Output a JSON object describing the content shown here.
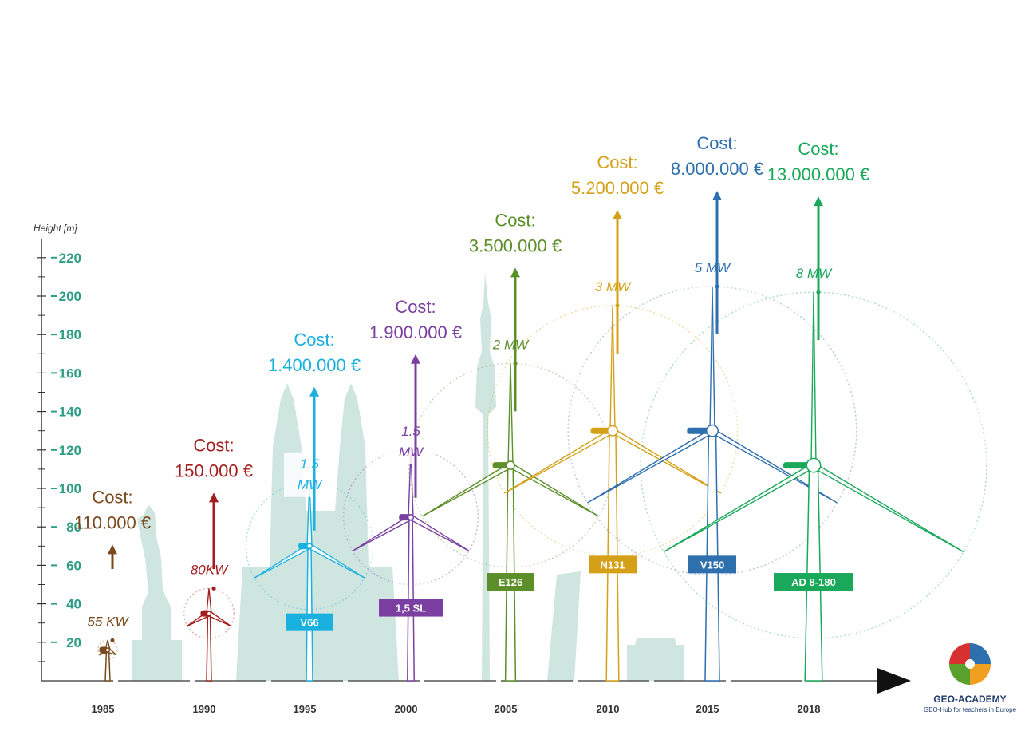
{
  "chart_data": {
    "type": "bar",
    "ylabel": "Height [m]",
    "ylim": [
      0,
      230
    ],
    "yticks": [
      20,
      40,
      60,
      80,
      100,
      120,
      140,
      160,
      180,
      200,
      220
    ],
    "categories": [
      "1985",
      "1990",
      "1995",
      "2000",
      "2005",
      "2010",
      "2015",
      "2018"
    ],
    "turbines": [
      {
        "year": "1985",
        "power": "55 KW",
        "model": "",
        "hub_height": 16,
        "tip_height": 21,
        "cost_label": "Cost:",
        "cost_value": "110.000 €",
        "color": "#7a4a1e"
      },
      {
        "year": "1990",
        "power": "80KW",
        "model": "",
        "hub_height": 35,
        "tip_height": 48,
        "cost_label": "Cost:",
        "cost_value": "150.000 €",
        "color": "#a31f1f"
      },
      {
        "year": "1995",
        "power": "1.5 MW",
        "model": "V66",
        "hub_height": 70,
        "tip_height": 103,
        "cost_label": "Cost:",
        "cost_value": "1.400.000 €",
        "color": "#1ab0e0"
      },
      {
        "year": "2000",
        "power": "1.5 MW",
        "model": "1,5 SL",
        "hub_height": 85,
        "tip_height": 120,
        "cost_label": "Cost:",
        "cost_value": "1.900.000 €",
        "color": "#7a3fa0"
      },
      {
        "year": "2005",
        "power": "2 MW",
        "model": "E126",
        "hub_height": 112,
        "tip_height": 165,
        "cost_label": "Cost:",
        "cost_value": "3.500.000 €",
        "color": "#5c8f2a"
      },
      {
        "year": "2010",
        "power": "3 MW",
        "model": "N131",
        "hub_height": 130,
        "tip_height": 195,
        "cost_label": "Cost:",
        "cost_value": "5.200.000 €",
        "color": "#d4a017"
      },
      {
        "year": "2015",
        "power": "5 MW",
        "model": "V150",
        "hub_height": 130,
        "tip_height": 205,
        "cost_label": "Cost:",
        "cost_value": "8.000.000 €",
        "color": "#2e6fad"
      },
      {
        "year": "2018",
        "power": "8 MW",
        "model": "AD 8-180",
        "hub_height": 112,
        "tip_height": 202,
        "cost_label": "Cost:",
        "cost_value": "13.000.000 €",
        "color": "#1aa85a"
      }
    ]
  },
  "brand": {
    "name": "GEO-ACADEMY",
    "tagline": "GEO-Hub for teachers in Europe"
  }
}
